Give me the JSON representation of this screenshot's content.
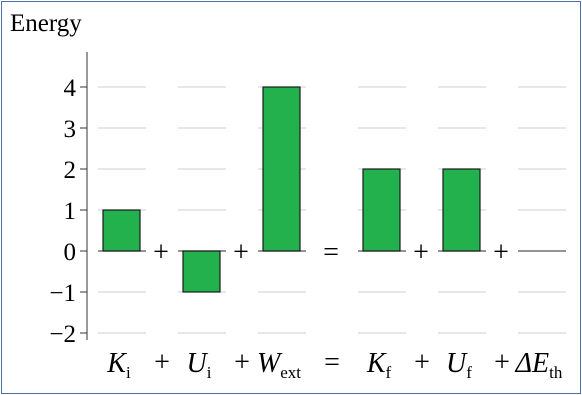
{
  "chart_data": {
    "type": "bar",
    "title": "Energy",
    "ylabel": "Energy",
    "xlabel": "",
    "ylim": [
      -2,
      4
    ],
    "yticks": [
      4,
      3,
      2,
      1,
      0,
      -1,
      -2
    ],
    "ytick_labels": [
      "4",
      "3",
      "2",
      "1",
      "0",
      "−1",
      "−2"
    ],
    "grid": true,
    "bar_color": "#22b14c",
    "bar_edge_color": "#1a1a1a",
    "categories": [
      {
        "base": "K",
        "sub": "i"
      },
      {
        "base": "U",
        "sub": "i"
      },
      {
        "base": "W",
        "sub": "ext"
      },
      {
        "base": "K",
        "sub": "f"
      },
      {
        "base": "U",
        "sub": "f"
      },
      {
        "base": "ΔE",
        "sub": "th"
      }
    ],
    "values": [
      1,
      -1,
      4,
      2,
      2,
      0
    ],
    "operators": [
      "+",
      "+",
      "=",
      "+",
      "+"
    ]
  }
}
